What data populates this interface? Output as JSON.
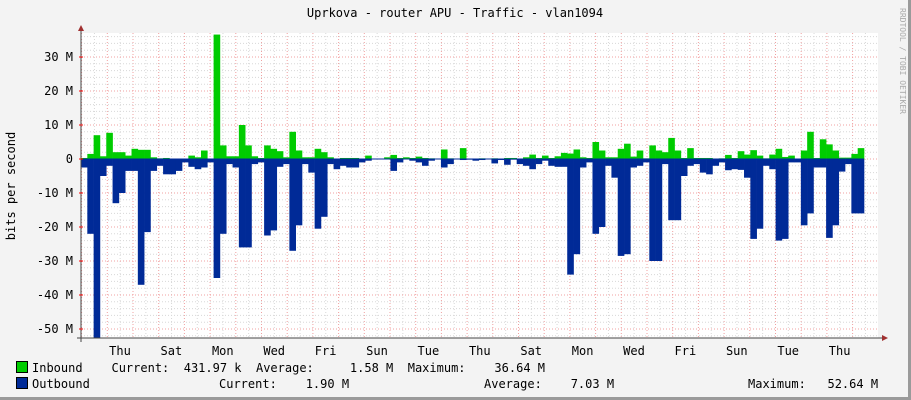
{
  "chart_data": {
    "type": "area",
    "title": "Uprkova - router APU - Traffic - vlan1094",
    "ylabel": "bits per second",
    "watermark": "RRDTOOL / TOBI OETIKER",
    "ylim": [
      -52.64,
      37
    ],
    "y_ticks": [
      30,
      20,
      10,
      0,
      -10,
      -20,
      -30,
      -40,
      -50
    ],
    "y_tick_labels": [
      "30 M",
      "20 M",
      "10 M",
      "0",
      "-10 M",
      "-20 M",
      "-30 M",
      "-40 M",
      "-50 M"
    ],
    "x_tick_labels": [
      "Thu",
      "Sat",
      "Mon",
      "Wed",
      "Fri",
      "Sun",
      "Tue",
      "Thu",
      "Sat",
      "Mon",
      "Wed",
      "Fri",
      "Sun",
      "Tue",
      "Thu"
    ],
    "grid": true,
    "unit": "M",
    "series": [
      {
        "name": "Inbound",
        "color": "#00cc00",
        "values": [
          0.3,
          1.5,
          7,
          0.8,
          7.7,
          2,
          2,
          1,
          3,
          2.7,
          2.7,
          0.5,
          0.2,
          0.3,
          0.1,
          0,
          0,
          1,
          0.5,
          2.5,
          0,
          36.6,
          4,
          0.8,
          0.8,
          10,
          4,
          0.8,
          0.3,
          4,
          3,
          2.3,
          0.5,
          8,
          2.5,
          0.5,
          0.5,
          3,
          2,
          0.5,
          0,
          0.3,
          0.3,
          0.3,
          0,
          1,
          0,
          0,
          0.5,
          1.2,
          0.3,
          0.5,
          0.3,
          0.7,
          0.3,
          0.2,
          0,
          2.8,
          0.2,
          0,
          3.2,
          0,
          0,
          0.2,
          0,
          0.2,
          0,
          0.3,
          0.3,
          0,
          0.5,
          1.3,
          0.3,
          1,
          0.3,
          0.8,
          1.8,
          1.6,
          2.8,
          0.5,
          0.3,
          5,
          2.5,
          0.5,
          0.5,
          3,
          4.5,
          0.7,
          2.5,
          0.2,
          4,
          2.5,
          2,
          6.2,
          2.5,
          0.3,
          3.2,
          0.3,
          0.3,
          0.3,
          0,
          0.2,
          1.2,
          0.3,
          2.3,
          1.3,
          2.6,
          1,
          0.2,
          1.3,
          3,
          0.6,
          1,
          0.1,
          2.5,
          8,
          0.3,
          5.8,
          4.3,
          2.5,
          0.4,
          0.4,
          1.5,
          3.2
        ]
      },
      {
        "name": "Outbound",
        "color": "#002a97",
        "values": [
          -2.5,
          -22,
          -52.6,
          -5,
          -2,
          -13,
          -10,
          -3.5,
          -3.5,
          -37,
          -21.5,
          -3.5,
          -2,
          -4.5,
          -4.5,
          -3.5,
          -1,
          -2.3,
          -3,
          -2.5,
          -1,
          -35,
          -22,
          -1.5,
          -2.5,
          -26,
          -26,
          -1.5,
          -1,
          -22.5,
          -21,
          -2.3,
          -1.5,
          -27,
          -19.5,
          -1.5,
          -4,
          -20.5,
          -17,
          -1.5,
          -3,
          -2,
          -2.5,
          -2.5,
          -1,
          -0.5,
          0,
          0,
          0,
          -3.5,
          -1,
          0,
          -0.5,
          -1,
          -2,
          -0.5,
          0,
          -2.5,
          -1.5,
          0,
          -0.3,
          -0.2,
          -0.5,
          -0.3,
          0,
          -1.3,
          -0.3,
          -1.7,
          -0.2,
          -1.5,
          -2,
          -3,
          -1.5,
          -0.5,
          -2,
          -2.3,
          -2.3,
          -34,
          -28,
          -2.5,
          -1,
          -22,
          -20,
          -2,
          -5.5,
          -28.5,
          -28,
          -2.5,
          -2,
          -1,
          -30,
          -30,
          -1.5,
          -18,
          -18,
          -5,
          -2,
          -1.5,
          -4,
          -4.5,
          -2,
          -1,
          -3.3,
          -3,
          -3.2,
          -5.5,
          -23.5,
          -20.5,
          -2,
          -3,
          -24,
          -23.5,
          -1,
          -1,
          -19.5,
          -16,
          -2.5,
          -2.5,
          -23.2,
          -19.5,
          -3.7,
          -1.5,
          -16,
          -16
        ]
      }
    ]
  },
  "legend": {
    "inbound": {
      "label": "Inbound",
      "current_label": "Current:",
      "current": "431.97 k",
      "average_label": "Average:",
      "average": "1.58 M",
      "maximum_label": "Maximum:",
      "maximum": "36.64 M",
      "color": "#00cc00"
    },
    "outbound": {
      "label": "Outbound",
      "current_label": "Current:",
      "current": "1.90 M",
      "average_label": "Average:",
      "average": "7.03 M",
      "maximum_label": "Maximum:",
      "maximum": "52.64 M",
      "color": "#002a97"
    }
  }
}
